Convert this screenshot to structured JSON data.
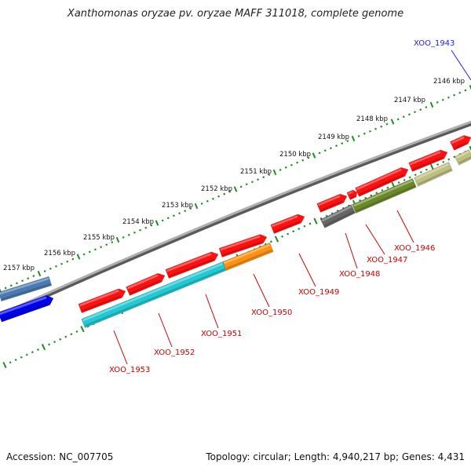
{
  "title": "Xanthomonas oryzae pv. oryzae MAFF 311018, complete genome",
  "footer": {
    "accession": "Accession: NC_007705",
    "summary": "Topology: circular; Length: 4,940,217 bp; Genes: 4,431"
  },
  "colors": {
    "backbone": "#8a8a8a",
    "tick": "#1e8c1e",
    "gene_red": "#ff1010",
    "cyan": "#22c8d2",
    "orange": "#ff9010",
    "dark_gray": "#666666",
    "olive": "#6a8a2a",
    "khaki": "#bfbf80",
    "steel_blue": "#4a7ab0",
    "blue": "#0000ee",
    "label_red": "#d40000",
    "label_blue": "#1a1aff"
  },
  "kbp_ticks": [
    "2146 kbp",
    "2147 kbp",
    "2148 kbp",
    "2149 kbp",
    "2150 kbp",
    "2151 kbp",
    "2152 kbp",
    "2153 kbp",
    "2154 kbp",
    "2155 kbp",
    "2156 kbp",
    "2157 kbp"
  ],
  "gene_labels": [
    {
      "id": "XOO_1943",
      "color": "blue"
    },
    {
      "id": "XOO_1946",
      "color": "red"
    },
    {
      "id": "XOO_1947",
      "color": "red"
    },
    {
      "id": "XOO_1948",
      "color": "red"
    },
    {
      "id": "XOO_1949",
      "color": "red"
    },
    {
      "id": "XOO_1950",
      "color": "red"
    },
    {
      "id": "XOO_1951",
      "color": "red"
    },
    {
      "id": "XOO_1952",
      "color": "red"
    },
    {
      "id": "XOO_1953",
      "color": "red"
    }
  ]
}
